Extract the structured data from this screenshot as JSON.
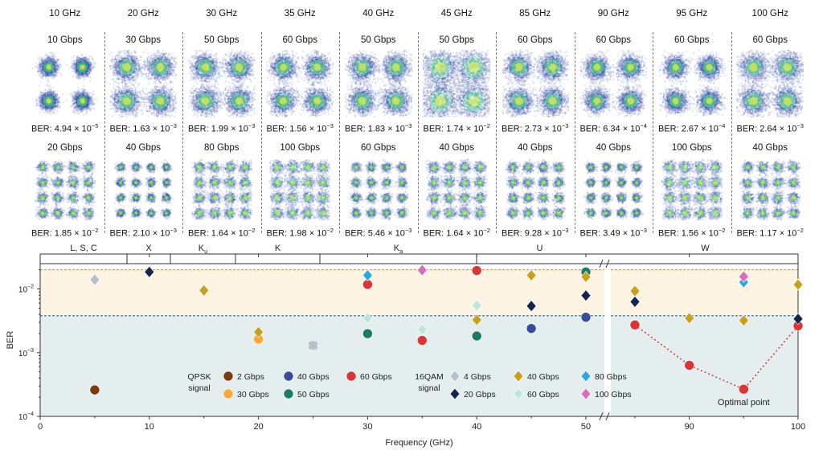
{
  "constellation_panels": [
    {
      "frequency": "10 GHz",
      "qpsk_rate": "10 Gbps",
      "qpsk_ber": {
        "m": "4.94",
        "e": "−5"
      },
      "qam_rate": "20 Gbps",
      "qam_ber": {
        "m": "1.85",
        "e": "−2"
      }
    },
    {
      "frequency": "20 GHz",
      "qpsk_rate": "30 Gbps",
      "qpsk_ber": {
        "m": "1.63",
        "e": "−3"
      },
      "qam_rate": "40 Gbps",
      "qam_ber": {
        "m": "2.10",
        "e": "−3"
      }
    },
    {
      "frequency": "30 GHz",
      "qpsk_rate": "50 Gbps",
      "qpsk_ber": {
        "m": "1.99",
        "e": "−3"
      },
      "qam_rate": "80 Gbps",
      "qam_ber": {
        "m": "1.64",
        "e": "−2"
      }
    },
    {
      "frequency": "35 GHz",
      "qpsk_rate": "60 Gbps",
      "qpsk_ber": {
        "m": "1.56",
        "e": "−3"
      },
      "qam_rate": "100 Gbps",
      "qam_ber": {
        "m": "1.98",
        "e": "−2"
      }
    },
    {
      "frequency": "40 GHz",
      "qpsk_rate": "50 Gbps",
      "qpsk_ber": {
        "m": "1.83",
        "e": "−3"
      },
      "qam_rate": "60 Gbps",
      "qam_ber": {
        "m": "5.46",
        "e": "−3"
      }
    },
    {
      "frequency": "45 GHz",
      "qpsk_rate": "50 Gbps",
      "qpsk_ber": {
        "m": "1.74",
        "e": "−2"
      },
      "qam_rate": "40 Gbps",
      "qam_ber": {
        "m": "1.64",
        "e": "−2"
      }
    },
    {
      "frequency": "85 GHz",
      "qpsk_rate": "60 Gbps",
      "qpsk_ber": {
        "m": "2.73",
        "e": "−3"
      },
      "qam_rate": "40 Gbps",
      "qam_ber": {
        "m": "9.28",
        "e": "−3"
      }
    },
    {
      "frequency": "90 GHz",
      "qpsk_rate": "60 Gbps",
      "qpsk_ber": {
        "m": "6.34",
        "e": "−4"
      },
      "qam_rate": "40 Gbps",
      "qam_ber": {
        "m": "3.49",
        "e": "−3"
      }
    },
    {
      "frequency": "95 GHz",
      "qpsk_rate": "60 Gbps",
      "qpsk_ber": {
        "m": "2.67",
        "e": "−4"
      },
      "qam_rate": "100 Gbps",
      "qam_ber": {
        "m": "1.56",
        "e": "−2"
      }
    },
    {
      "frequency": "100 GHz",
      "qpsk_rate": "60 Gbps",
      "qpsk_ber": {
        "m": "2.64",
        "e": "−3"
      },
      "qam_rate": "40 Gbps",
      "qam_ber": {
        "m": "1.17",
        "e": "−2"
      }
    }
  ],
  "ber_prefix": "BER: ",
  "times_sign": " × 10",
  "chart_data": {
    "type": "scatter",
    "xlabel": "Frequency (GHz)",
    "ylabel": "BER",
    "y_scale": "log",
    "ylim": [
      0.0001,
      0.025
    ],
    "x_ticks": [
      0,
      10,
      20,
      30,
      40,
      50,
      90,
      100
    ],
    "x_tick_labels": [
      "0",
      "10",
      "20",
      "30",
      "40",
      "50",
      "90",
      "100"
    ],
    "x_axis_break": "between 50 and 85",
    "y_tick_labels": [
      {
        "m": "10",
        "e": "−2"
      },
      {
        "m": "10",
        "e": "−3"
      },
      {
        "m": "10",
        "e": "−4"
      }
    ],
    "thresholds": [
      {
        "value": 0.02,
        "color": "#e08a1e"
      },
      {
        "value": 0.0038,
        "color": "#2e6a8a"
      }
    ],
    "bands": [
      {
        "label": "L, S, C",
        "sub": ""
      },
      {
        "label": "X",
        "sub": ""
      },
      {
        "label": "K",
        "sub": "u"
      },
      {
        "label": "K",
        "sub": ""
      },
      {
        "label": "K",
        "sub": "a"
      },
      {
        "label": "U",
        "sub": ""
      },
      {
        "label": "W",
        "sub": ""
      }
    ],
    "series": [
      {
        "group": "QPSK",
        "name": "2 Gbps",
        "color": "#7a3b10",
        "shape": "circle",
        "points": [
          [
            5,
            0.00026
          ]
        ]
      },
      {
        "group": "QPSK",
        "name": "30 Gbps",
        "color": "#f4a93b",
        "shape": "circle",
        "points": [
          [
            20,
            0.00163
          ]
        ]
      },
      {
        "group": "QPSK",
        "name": "40 Gbps",
        "color": "#3a4b9a",
        "shape": "circle",
        "points": [
          [
            45,
            0.0024
          ],
          [
            50,
            0.0036
          ]
        ]
      },
      {
        "group": "QPSK",
        "name": "50 Gbps",
        "color": "#1f7a64",
        "shape": "circle",
        "points": [
          [
            25,
            0.0013
          ],
          [
            30,
            0.00199
          ],
          [
            40,
            0.00183
          ],
          [
            50,
            0.0185
          ]
        ]
      },
      {
        "group": "QPSK",
        "name": "60 Gbps",
        "color": "#d93636",
        "shape": "circle",
        "points": [
          [
            30,
            0.0118
          ],
          [
            35,
            0.00156
          ],
          [
            40,
            0.0195
          ],
          [
            85,
            0.00273
          ],
          [
            90,
            0.000634
          ],
          [
            95,
            0.000267
          ],
          [
            100,
            0.00264
          ]
        ]
      },
      {
        "group": "16QAM",
        "name": "4 Gbps",
        "color": "#b8bfca",
        "shape": "diamond",
        "points": [
          [
            5,
            0.014
          ],
          [
            25,
            0.0013
          ]
        ]
      },
      {
        "group": "16QAM",
        "name": "20 Gbps",
        "color": "#15244d",
        "shape": "diamond",
        "points": [
          [
            10,
            0.0185
          ],
          [
            45,
            0.0054
          ],
          [
            50,
            0.0079
          ],
          [
            85,
            0.0063
          ],
          [
            100,
            0.0034
          ]
        ]
      },
      {
        "group": "16QAM",
        "name": "40 Gbps",
        "color": "#c9a01a",
        "shape": "diamond",
        "points": [
          [
            15,
            0.0095
          ],
          [
            20,
            0.0021
          ],
          [
            40,
            0.00328
          ],
          [
            45,
            0.0164
          ],
          [
            50,
            0.0155
          ],
          [
            85,
            0.0093
          ],
          [
            90,
            0.00349
          ],
          [
            95,
            0.0032
          ],
          [
            100,
            0.0117
          ]
        ]
      },
      {
        "group": "16QAM",
        "name": "60 Gbps",
        "color": "#bfe6dc",
        "shape": "diamond",
        "points": [
          [
            30,
            0.0035
          ],
          [
            35,
            0.0023
          ],
          [
            40,
            0.00546
          ]
        ]
      },
      {
        "group": "16QAM",
        "name": "80 Gbps",
        "color": "#2aa7dd",
        "shape": "diamond",
        "points": [
          [
            30,
            0.0164
          ],
          [
            95,
            0.0128
          ]
        ]
      },
      {
        "group": "16QAM",
        "name": "100 Gbps",
        "color": "#d66fb9",
        "shape": "diamond",
        "points": [
          [
            35,
            0.0198
          ],
          [
            95,
            0.0156
          ]
        ]
      }
    ],
    "legend": {
      "qpsk_title": [
        "QPSK",
        "signal"
      ],
      "qam_title": [
        "16QAM",
        "signal"
      ]
    },
    "highlight": {
      "series": "60 Gbps",
      "x_from": 85,
      "label": "Optimal point",
      "at": [
        95,
        0.000267
      ]
    }
  }
}
